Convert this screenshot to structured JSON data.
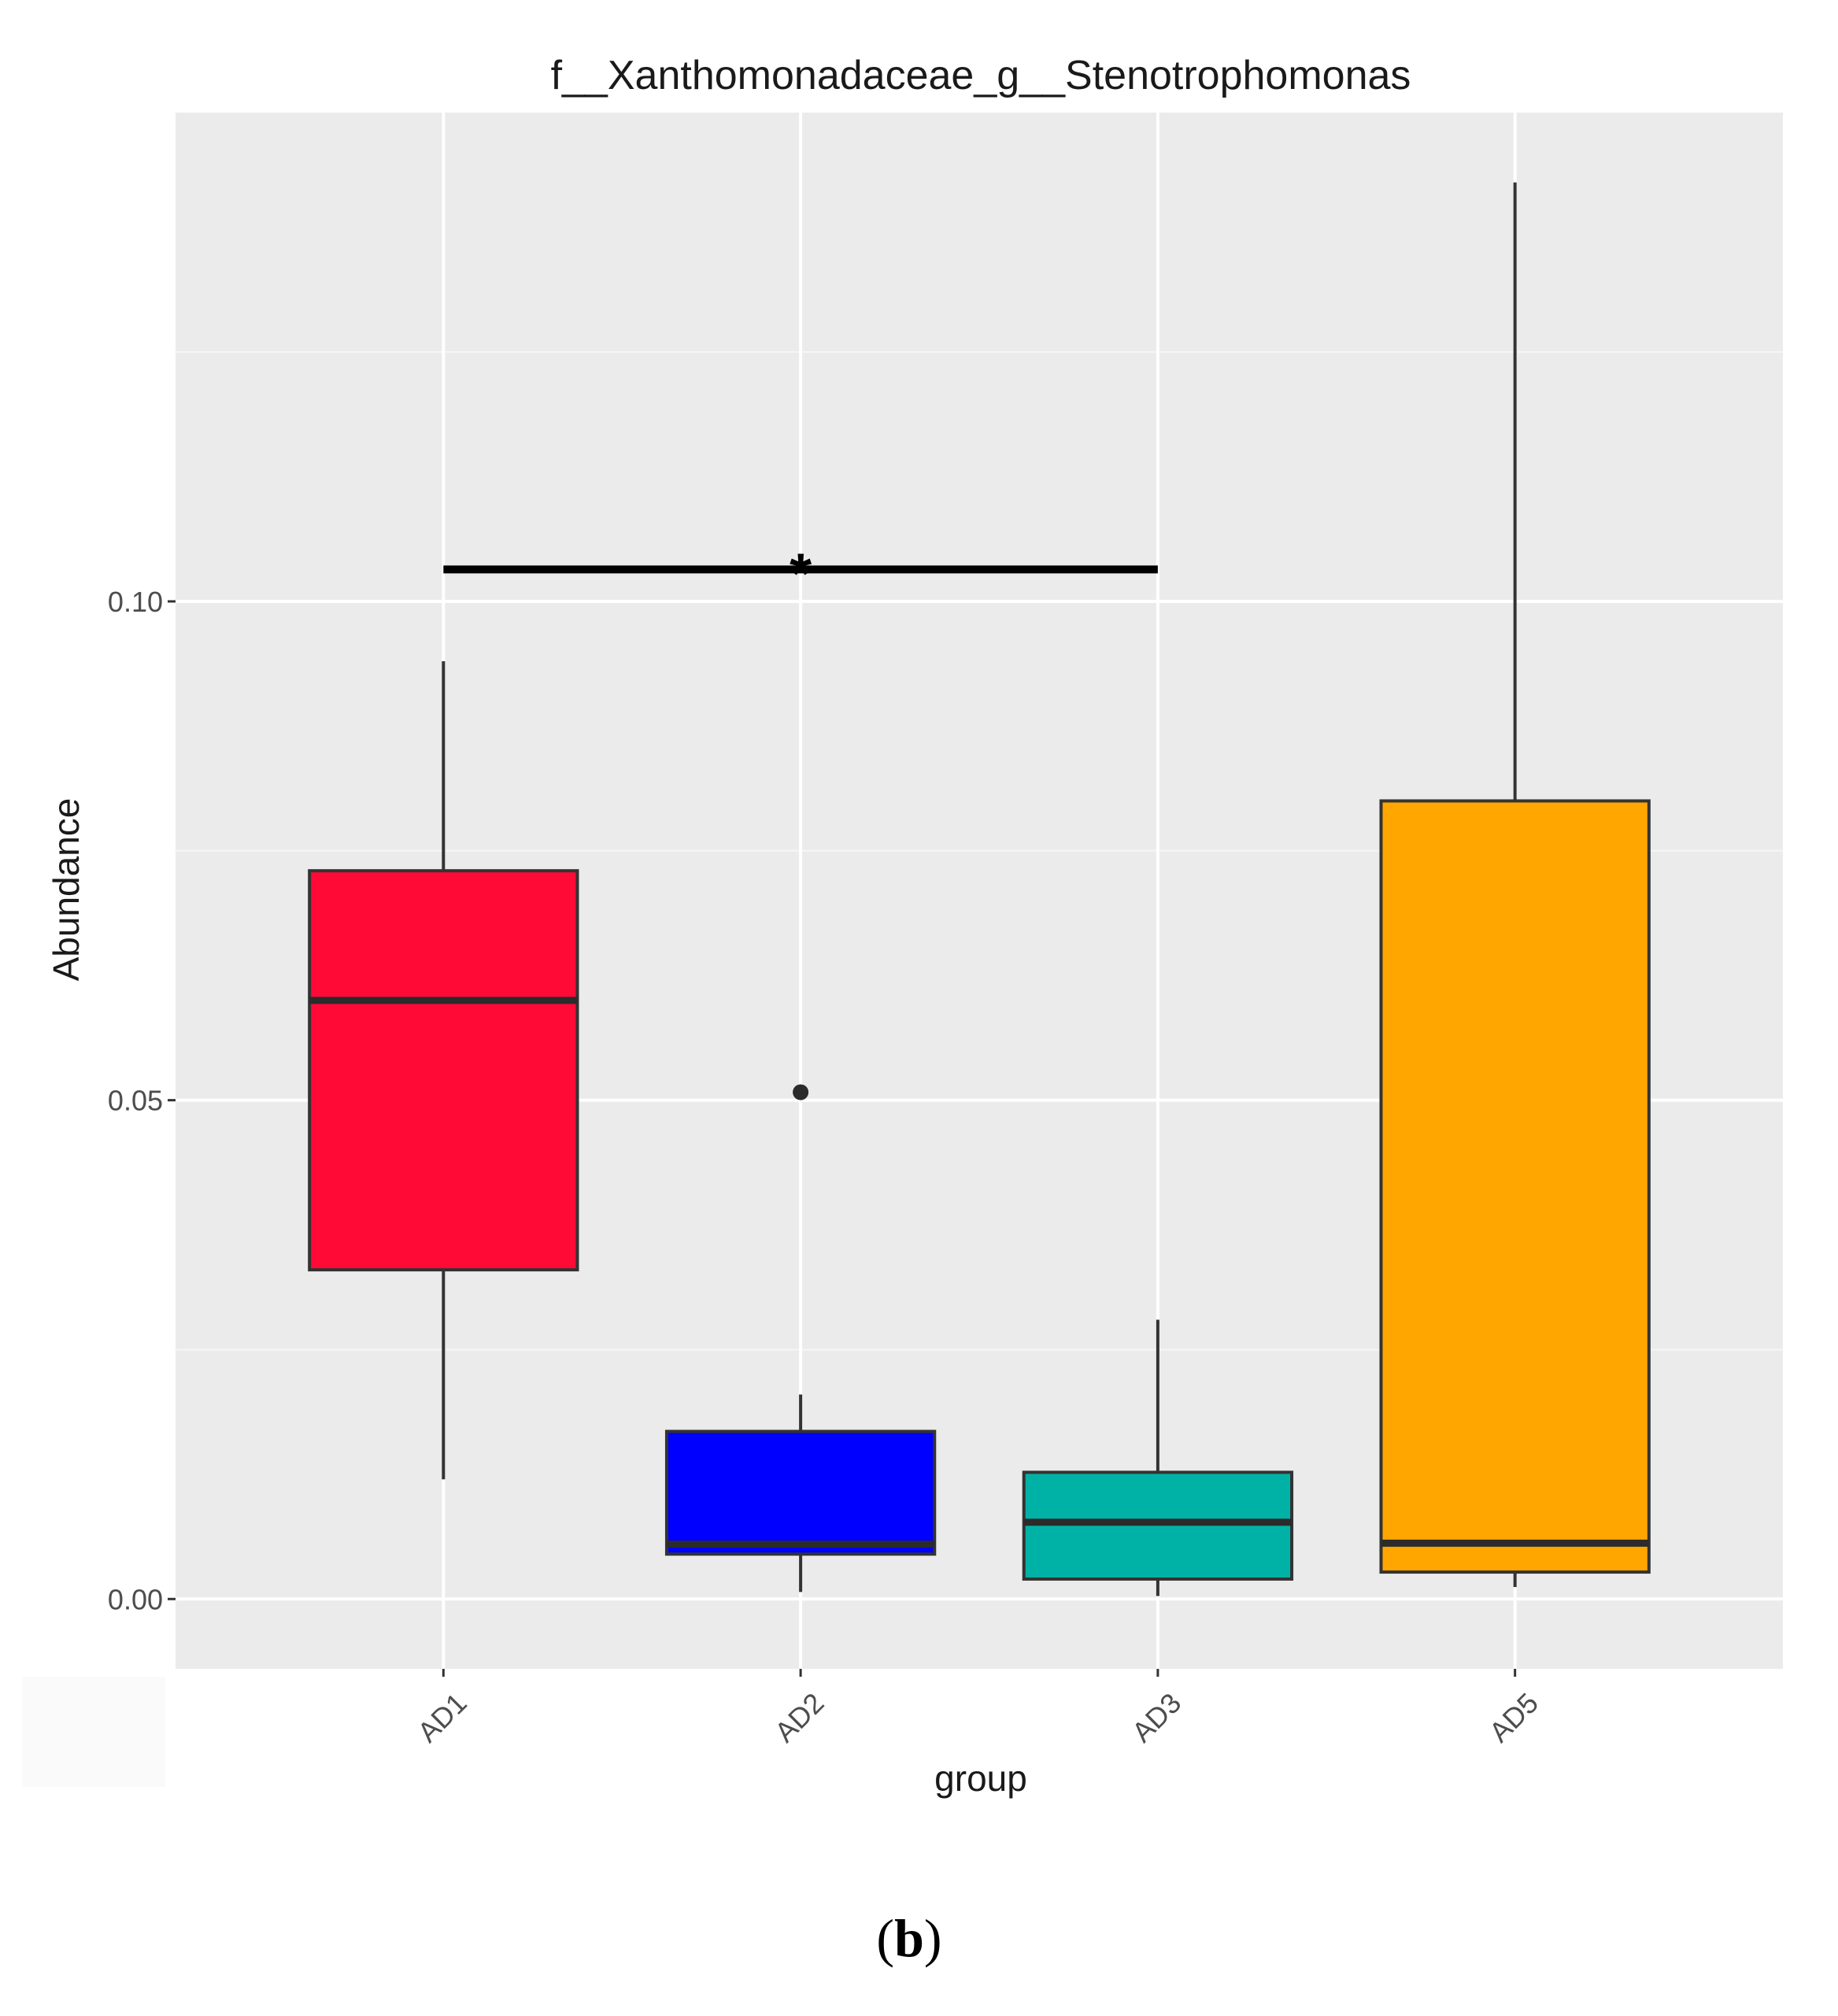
{
  "chart_data": {
    "type": "box",
    "title": "f__Xanthomonadaceae_g__Stenotrophomonas",
    "xlabel": "group",
    "ylabel": "Abundance",
    "ylim": [
      -0.007,
      0.149
    ],
    "yticks": [
      0.0,
      0.05,
      0.1
    ],
    "ytick_labels": [
      "0.00",
      "0.05",
      "0.10"
    ],
    "grid": true,
    "categories": [
      "AD1",
      "AD2",
      "AD3",
      "AD5"
    ],
    "boxes": [
      {
        "group": "AD1",
        "whisker_low": 0.012,
        "q1": 0.033,
        "median": 0.06,
        "q3": 0.073,
        "whisker_high": 0.094,
        "outliers": [],
        "color": "#ff0a37"
      },
      {
        "group": "AD2",
        "whisker_low": 0.0007,
        "q1": 0.0045,
        "median": 0.0055,
        "q3": 0.0168,
        "whisker_high": 0.0205,
        "outliers": [
          0.0508
        ],
        "color": "#0000ff"
      },
      {
        "group": "AD3",
        "whisker_low": 0.0003,
        "q1": 0.002,
        "median": 0.0077,
        "q3": 0.0127,
        "whisker_high": 0.028,
        "outliers": [],
        "color": "#00b2a6"
      },
      {
        "group": "AD5",
        "whisker_low": 0.0012,
        "q1": 0.0027,
        "median": 0.0056,
        "q3": 0.08,
        "whisker_high": 0.142,
        "outliers": [],
        "color": "#ffa600"
      }
    ],
    "significance": {
      "from": "AD1",
      "to": "AD3",
      "y": 0.1032,
      "label": "*"
    }
  },
  "caption": {
    "open": "(",
    "letter": "b",
    "close": ")"
  }
}
